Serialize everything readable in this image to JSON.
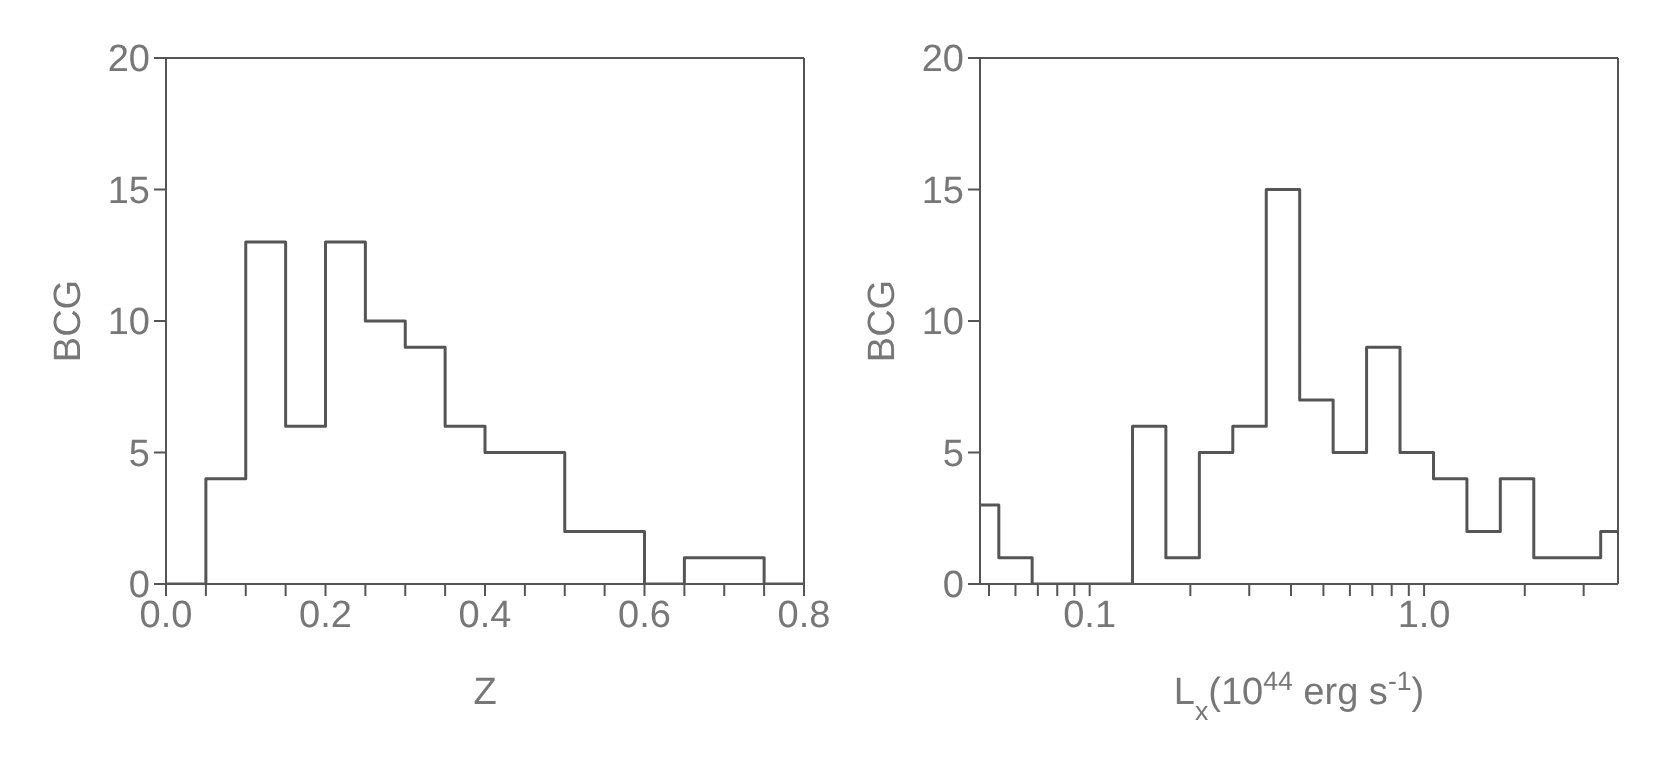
{
  "chart_data": [
    {
      "type": "histogram",
      "xlabel": "Z",
      "ylabel": "BCG",
      "color": "#555555",
      "bins": [
        0,
        0.05,
        0.1,
        0.15,
        0.2,
        0.25,
        0.3,
        0.35,
        0.4,
        0.45,
        0.5,
        0.55,
        0.6,
        0.65,
        0.7,
        0.75,
        0.8
      ],
      "values": [
        0,
        4,
        13,
        6,
        13,
        10,
        9,
        6,
        5,
        5,
        2,
        2,
        0,
        1,
        1,
        0
      ],
      "xlim": [
        0,
        0.8
      ],
      "xticks": [
        {
          "value": 0,
          "label": "0.0"
        },
        {
          "value": 0.05,
          "label": null
        },
        {
          "value": 0.1,
          "label": null
        },
        {
          "value": 0.15,
          "label": null
        },
        0.2,
        {
          "value": 0.25,
          "label": null
        },
        {
          "value": 0.3,
          "label": null
        },
        {
          "value": 0.35,
          "label": null
        },
        0.4,
        {
          "value": 0.45,
          "label": null
        },
        {
          "value": 0.5,
          "label": null
        },
        {
          "value": 0.55,
          "label": null
        },
        0.6,
        {
          "value": 0.65,
          "label": null
        },
        {
          "value": 0.7,
          "label": null
        },
        {
          "value": 0.75,
          "label": null
        },
        0.8
      ],
      "ylim": [
        0,
        20
      ],
      "yticks": [
        0,
        5,
        10,
        15,
        20
      ]
    },
    {
      "type": "histogram",
      "xlabel": "L$_{x}$(10$^{44}$ erg s$^{-1}$)",
      "ylabel": "BCG",
      "color": "#555555",
      "log": "x",
      "bins": [
        0.047,
        0.0535,
        0.0673,
        0.0847,
        0.1067,
        0.1343,
        0.169,
        0.2128,
        0.2679,
        0.3373,
        0.4246,
        0.5346,
        0.673,
        0.8472,
        1.067,
        1.343,
        1.69,
        2.128,
        2.679,
        3.373,
        3.8
      ],
      "values": [
        3,
        1,
        0,
        0,
        0,
        6,
        1,
        5,
        6,
        15,
        7,
        5,
        9,
        5,
        4,
        2,
        4,
        1,
        1,
        2
      ],
      "xlim": [
        0.047,
        3.8
      ],
      "xticks": [
        {
          "value": 0.05,
          "label": null
        },
        {
          "value": 0.06,
          "label": null
        },
        {
          "value": 0.07,
          "label": null
        },
        {
          "value": 0.08,
          "label": null
        },
        {
          "value": 0.09,
          "label": null
        },
        0.1,
        {
          "value": 0.2,
          "label": null
        },
        {
          "value": 0.3,
          "label": null
        },
        {
          "value": 0.4,
          "label": null
        },
        {
          "value": 0.5,
          "label": null
        },
        {
          "value": 0.6,
          "label": null
        },
        {
          "value": 0.7,
          "label": null
        },
        {
          "value": 0.8,
          "label": null
        },
        {
          "value": 0.9,
          "label": null
        },
        {
          "value": 1,
          "label": "1.0"
        },
        {
          "value": 2,
          "label": null
        },
        {
          "value": 3,
          "label": null
        }
      ],
      "ylim": [
        0,
        20
      ],
      "yticks": [
        0,
        5,
        10,
        15,
        20
      ]
    }
  ]
}
